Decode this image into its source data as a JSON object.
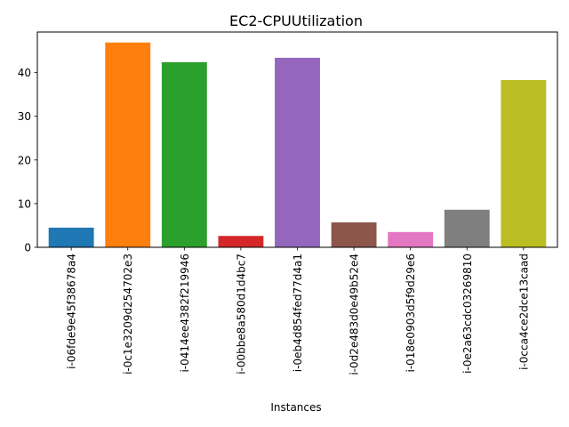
{
  "chart_data": {
    "type": "bar",
    "title": "EC2-CPUUtilization",
    "xlabel": "Instances",
    "ylabel": "",
    "categories": [
      "i-06fde9e45f38678a4",
      "i-0c1e3209d254702e3",
      "i-0414ee4382f219946",
      "i-00bbe8a580d1d4bc7",
      "i-0eb4d854fed77d4a1",
      "i-0d2e483d0e49b52e4",
      "i-018e0903d5f9d29e6",
      "i-0e2a63cdc03269810",
      "i-0cca4ce2dce13caad"
    ],
    "values": [
      4.5,
      46.9,
      42.4,
      2.6,
      43.4,
      5.7,
      3.5,
      8.6,
      38.3
    ],
    "colors": [
      "#1f77b4",
      "#ff7f0e",
      "#2ca02c",
      "#d62728",
      "#9467bd",
      "#8c564b",
      "#e377c2",
      "#7f7f7f",
      "#bcbd22"
    ],
    "ylim": [
      0,
      49.3
    ],
    "yticks": [
      0,
      10,
      20,
      30,
      40
    ],
    "grid": false,
    "legend": "none"
  }
}
